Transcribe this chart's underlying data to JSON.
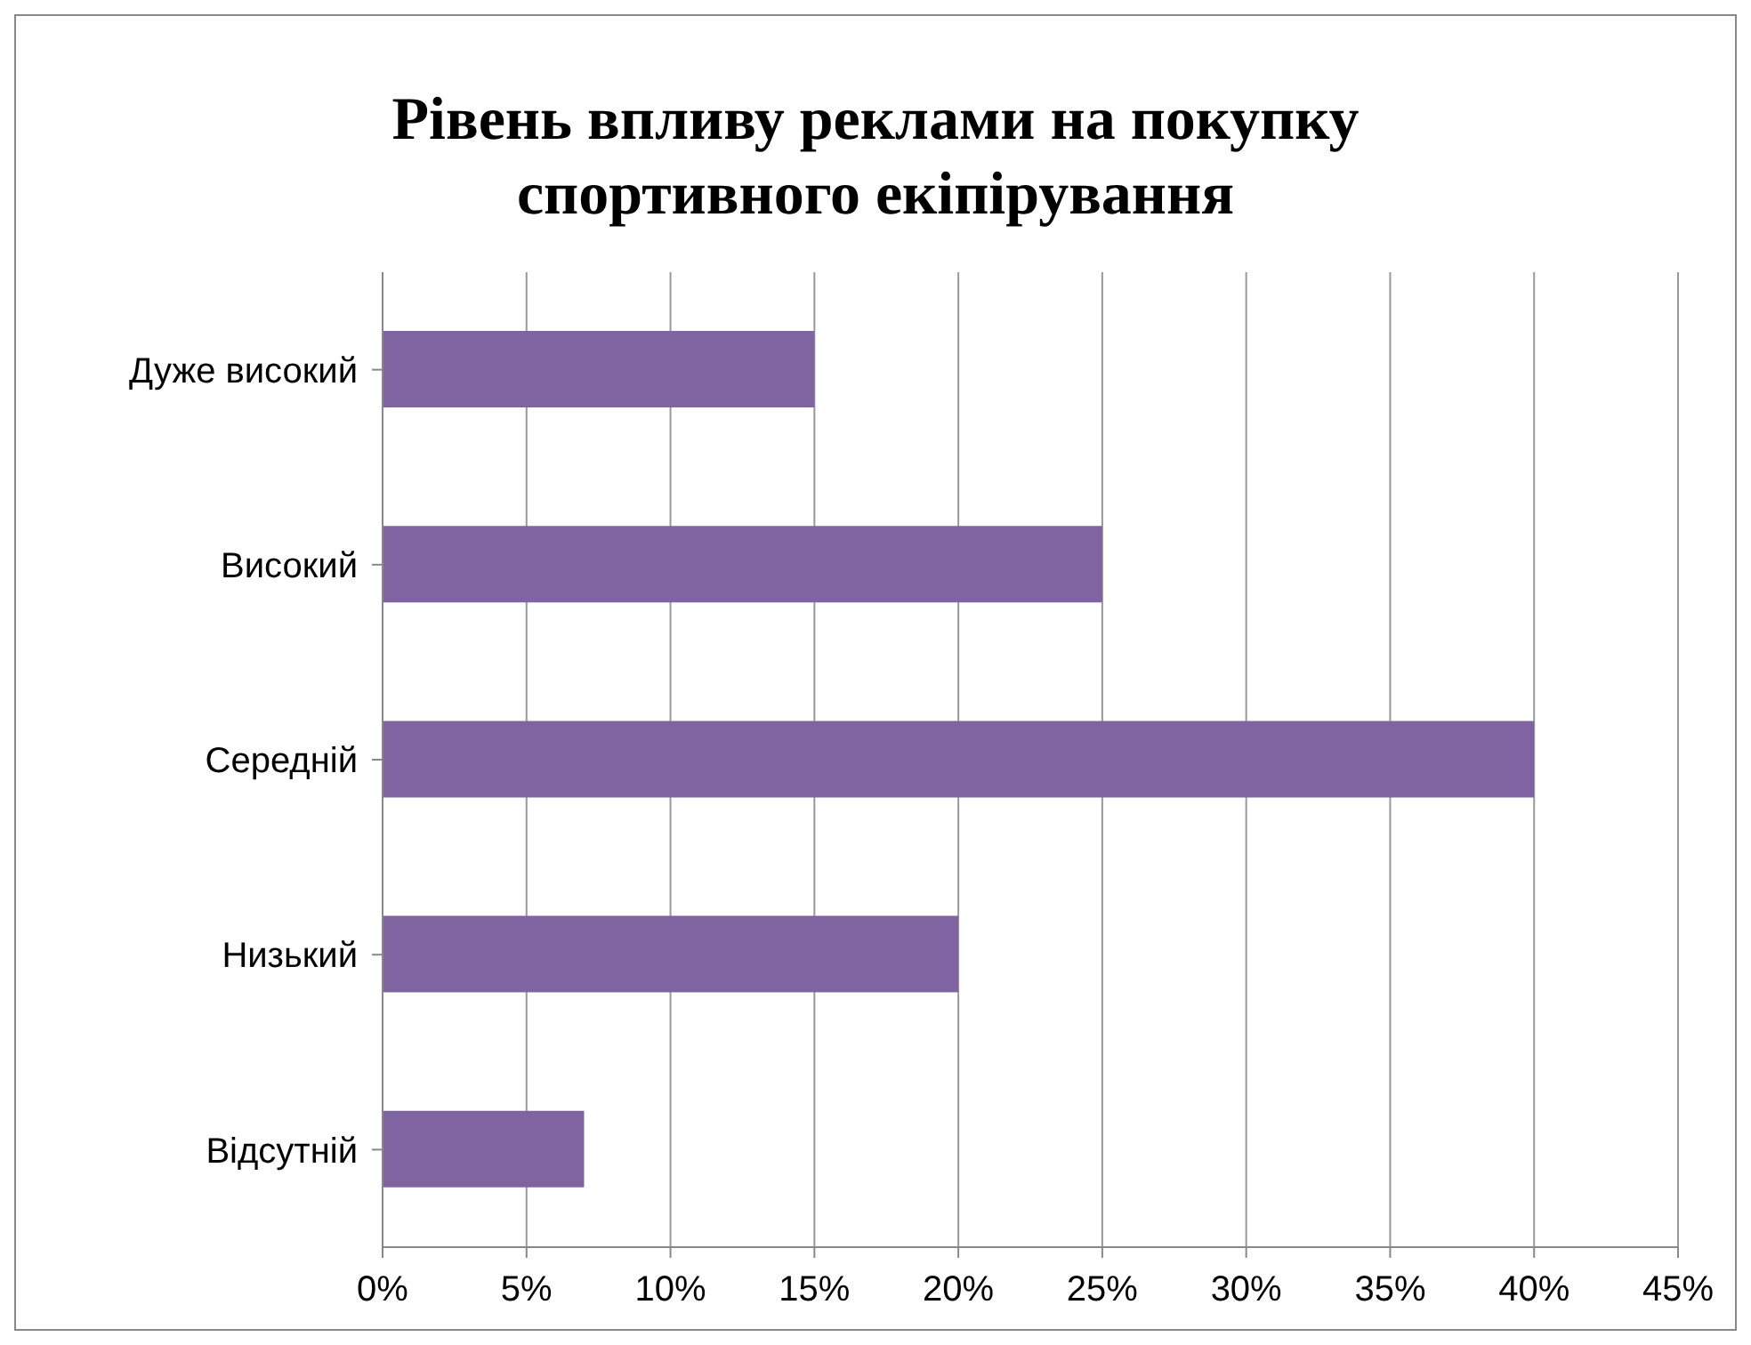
{
  "chart_data": {
    "type": "bar",
    "orientation": "horizontal",
    "title": "Рівень впливу реклами на покупку спортивного екіпірування",
    "categories": [
      "Дуже високий",
      "Високий",
      "Середній",
      "Низький",
      "Відсутній"
    ],
    "values": [
      15,
      25,
      40,
      20,
      7
    ],
    "color": "#8064a2",
    "xlim": [
      0,
      45
    ],
    "xticks": [
      {
        "value": 0,
        "label": "0%"
      },
      {
        "value": 5,
        "label": "5%"
      },
      {
        "value": 10,
        "label": "10%"
      },
      {
        "value": 15,
        "label": "15%"
      },
      {
        "value": 20,
        "label": "20%"
      },
      {
        "value": 25,
        "label": "25%"
      },
      {
        "value": 30,
        "label": "30%"
      },
      {
        "value": 35,
        "label": "35%"
      },
      {
        "value": 40,
        "label": "40%"
      },
      {
        "value": 45,
        "label": "45%"
      }
    ],
    "grid": "x"
  }
}
